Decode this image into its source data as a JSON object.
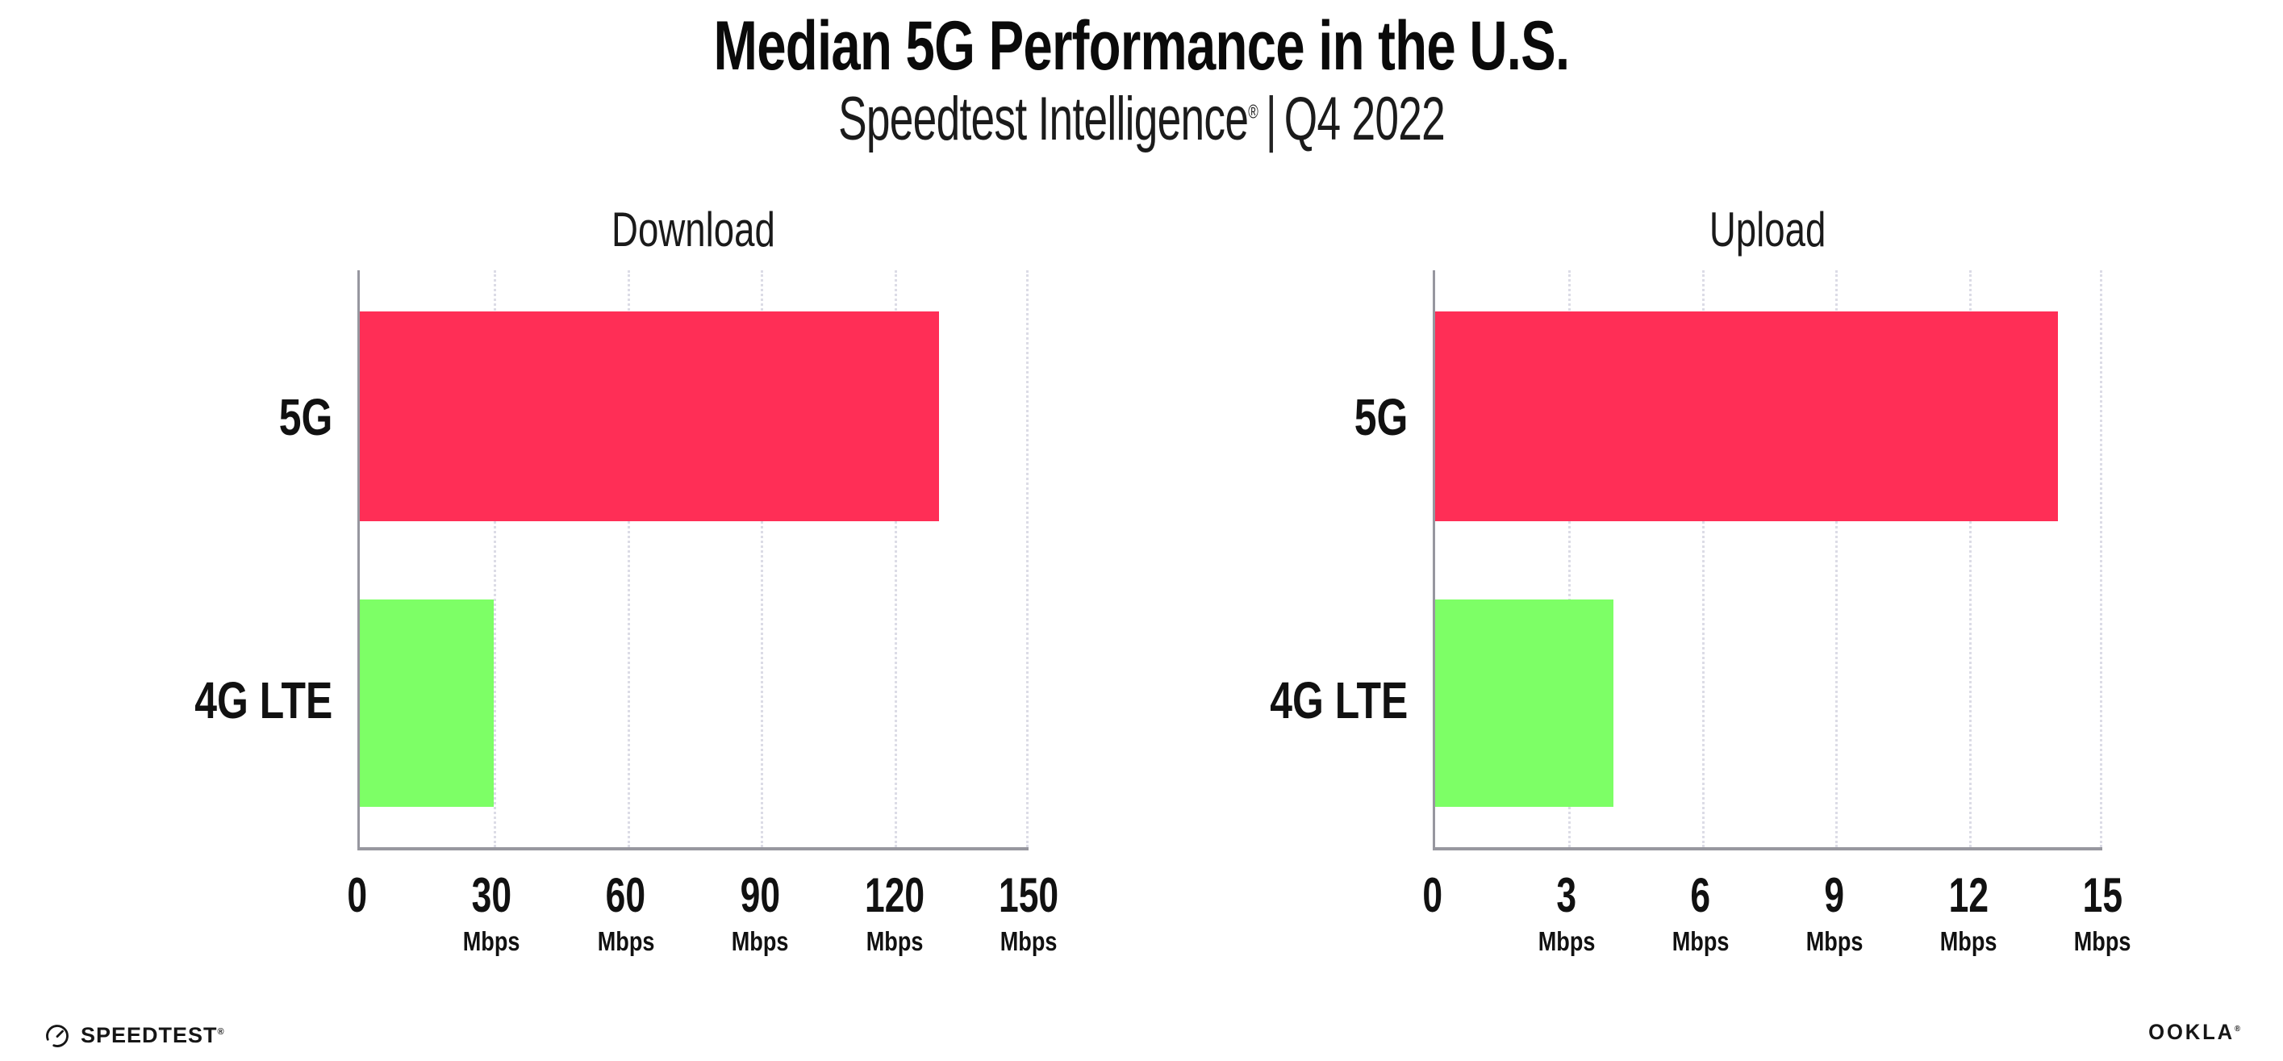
{
  "header": {
    "title": "Median 5G Performance in the U.S.",
    "subtitle_brand": "Speedtest Intelligence",
    "subtitle_reg": "®",
    "subtitle_separator": "|",
    "subtitle_period": "Q4 2022"
  },
  "chart_data": [
    {
      "type": "bar",
      "orientation": "horizontal",
      "panel": "left",
      "title": "Download",
      "categories": [
        "5G",
        "4G LTE"
      ],
      "values": [
        130,
        30
      ],
      "unit": "Mbps",
      "xlim": [
        0,
        150
      ],
      "xticks": [
        0,
        30,
        60,
        90,
        120,
        150
      ],
      "bar_colors": [
        "#FF2E56",
        "#7DFF66"
      ],
      "grid": "vertical-dotted",
      "legend": "none"
    },
    {
      "type": "bar",
      "orientation": "horizontal",
      "panel": "right",
      "title": "Upload",
      "categories": [
        "5G",
        "4G LTE"
      ],
      "values": [
        14,
        4
      ],
      "unit": "Mbps",
      "xlim": [
        0,
        15
      ],
      "xticks": [
        0,
        3,
        6,
        9,
        12,
        15
      ],
      "bar_colors": [
        "#FF2E56",
        "#7DFF66"
      ],
      "grid": "vertical-dotted",
      "legend": "none"
    }
  ],
  "footer": {
    "speedtest_wordmark": "SPEEDTEST",
    "speedtest_reg": "®",
    "ookla_wordmark": "OOKLA",
    "ookla_reg": "®"
  },
  "colors": {
    "bar_5g": "#FF2E56",
    "bar_4g_lte": "#7DFF66",
    "axis": "#97979F",
    "gridline": "#DCDCE6",
    "text": "#111111"
  }
}
